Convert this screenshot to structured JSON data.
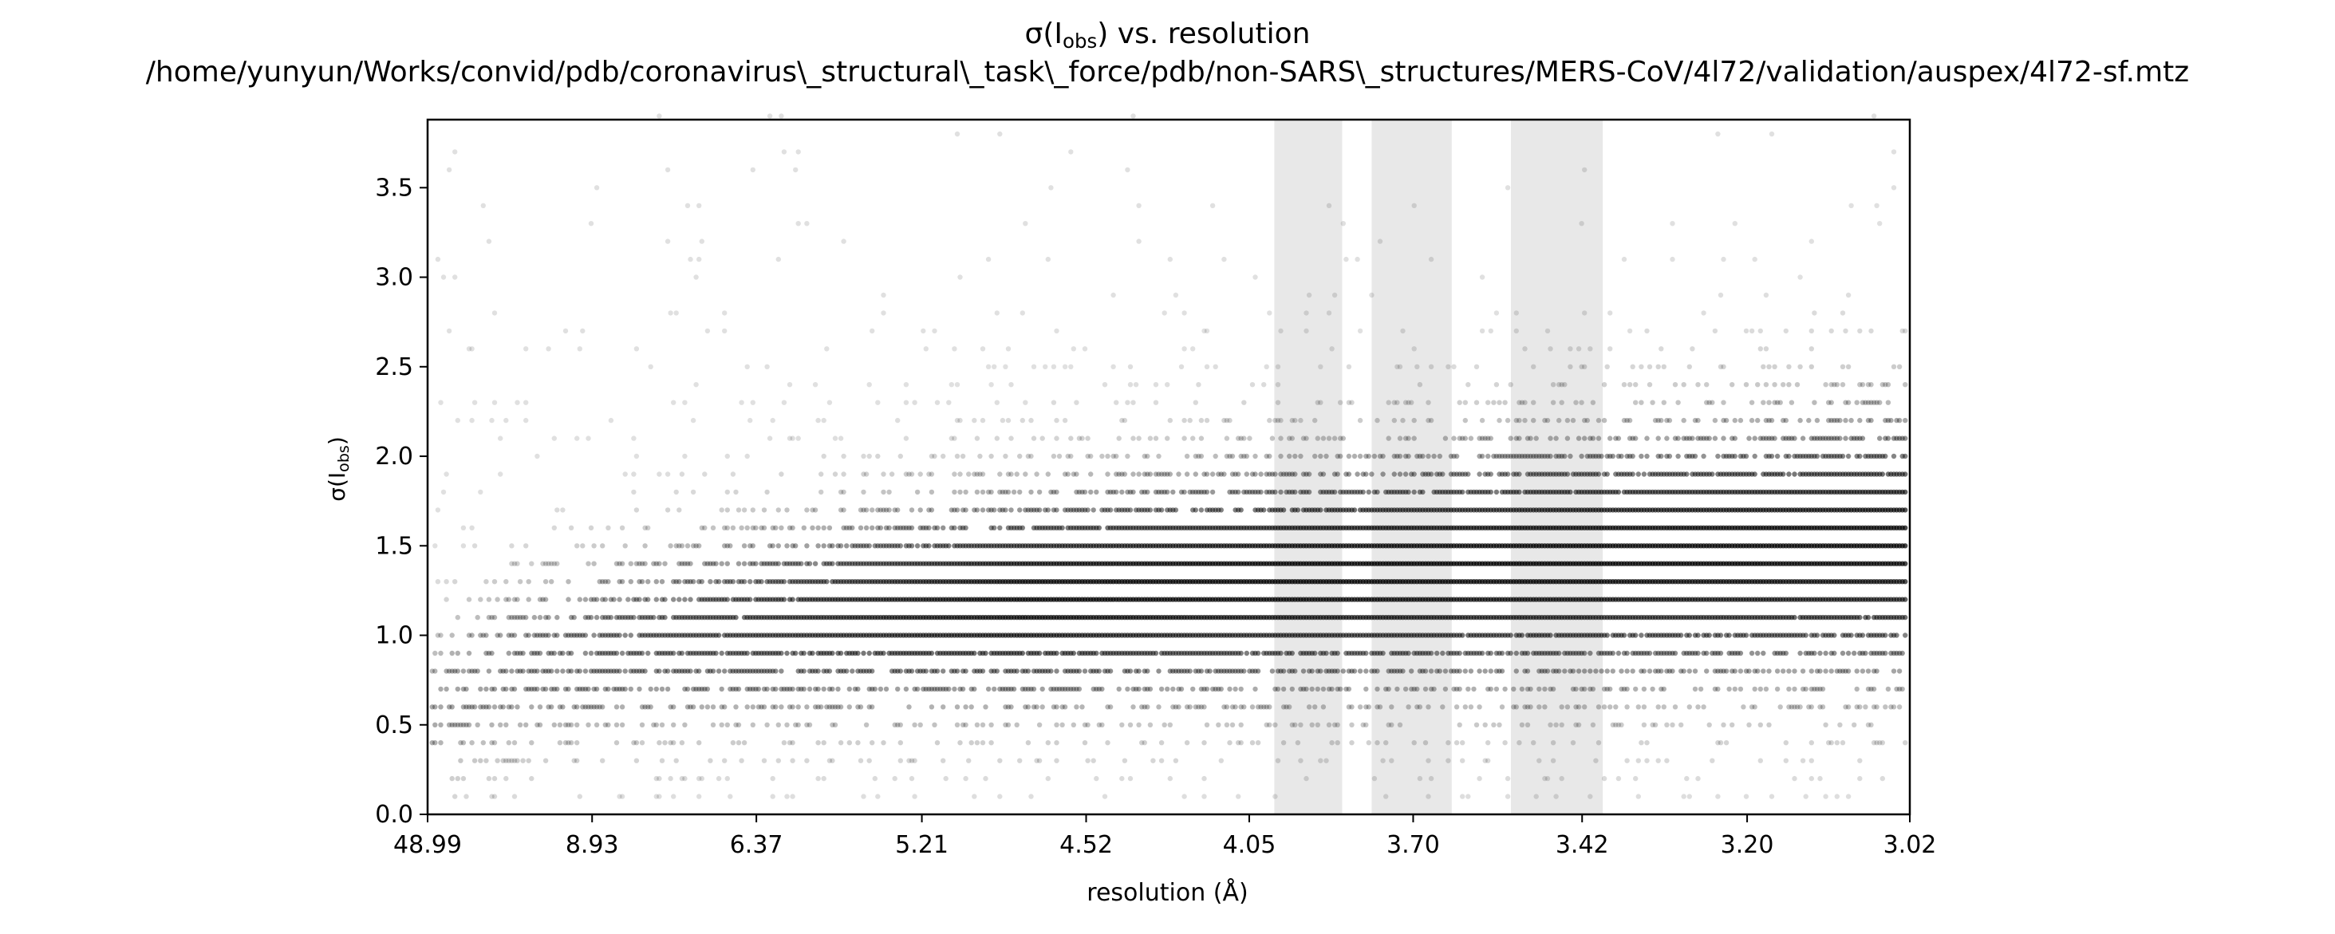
{
  "chart_data": {
    "type": "scatter",
    "title": "σ(I",
    "title_sub": "obs",
    "title_tail": ") vs. resolution",
    "subtitle": "/home/yunyun/Works/convid/pdb/coronavirus\\_structural\\_task\\_force/pdb/non-SARS\\_structures/MERS-CoV/4l72/validation/auspex/4l72-sf.mtz",
    "xlabel": "resolution (Å)",
    "ylabel": "σ(I",
    "ylabel_sub": "obs",
    "ylabel_tail": ")",
    "x_axis_scale": "1/d^2 (tick labels show resolution in Å, decreasing to the right)",
    "x_ticks": [
      "48.99",
      "8.93",
      "6.37",
      "5.21",
      "4.52",
      "4.05",
      "3.70",
      "3.42",
      "3.20",
      "3.02"
    ],
    "xlim_resolution": [
      48.99,
      3.02
    ],
    "y_ticks": [
      "0.0",
      "0.5",
      "1.0",
      "1.5",
      "2.0",
      "2.5",
      "3.0",
      "3.5"
    ],
    "ylim": [
      0,
      3.88
    ],
    "y_step": 0.1,
    "grid": false,
    "legend": "none",
    "point_color": "#000000",
    "shaded_color": "#e8e8e8",
    "ice_ring_bands": [
      {
        "from_resolution": 3.99,
        "to_resolution": 3.84
      },
      {
        "from_resolution": 3.78,
        "to_resolution": 3.63
      },
      {
        "from_resolution": 3.53,
        "to_resolution": 3.39
      }
    ]
  }
}
